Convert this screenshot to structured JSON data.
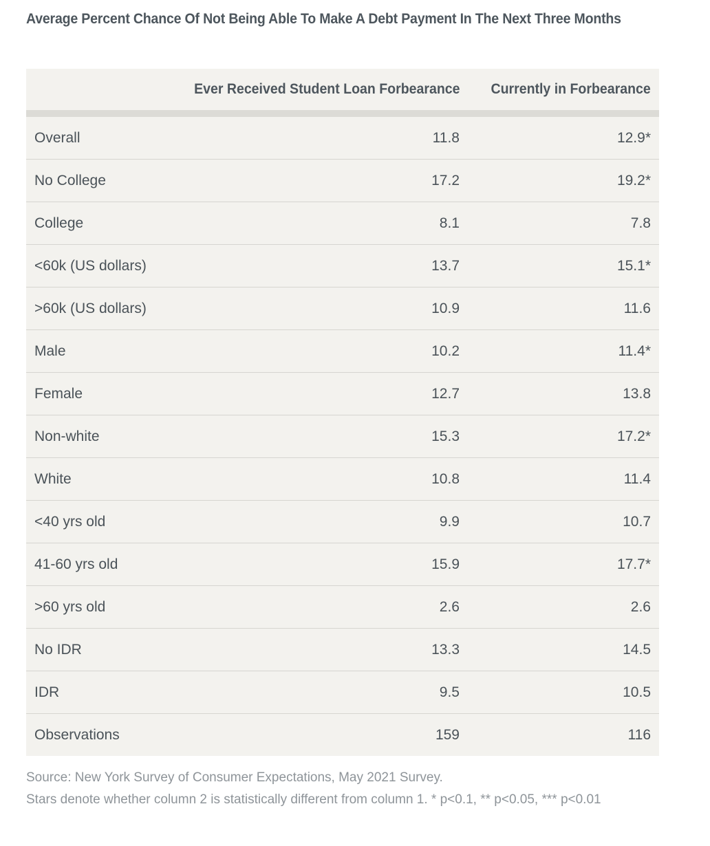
{
  "title": "Average Percent Chance Of Not Being Able To Make A Debt Payment In The Next Three Months",
  "chart_data": {
    "type": "table",
    "title": "Average Percent Chance Of Not Being Able To Make A Debt Payment In The Next Three Months",
    "columns": [
      "",
      "Ever Received Student Loan Forbearance",
      "Currently in Forbearance"
    ],
    "rows": [
      {
        "label": "Overall",
        "ever": "11.8",
        "current": "12.9*"
      },
      {
        "label": "No College",
        "ever": "17.2",
        "current": "19.2*"
      },
      {
        "label": "College",
        "ever": "8.1",
        "current": "7.8"
      },
      {
        "label": "<60k (US dollars)",
        "ever": "13.7",
        "current": "15.1*"
      },
      {
        "label": ">60k (US dollars)",
        "ever": "10.9",
        "current": "11.6"
      },
      {
        "label": "Male",
        "ever": "10.2",
        "current": "11.4*"
      },
      {
        "label": "Female",
        "ever": "12.7",
        "current": "13.8"
      },
      {
        "label": "Non-white",
        "ever": "15.3",
        "current": "17.2*"
      },
      {
        "label": "White",
        "ever": "10.8",
        "current": "11.4"
      },
      {
        "label": "<40 yrs old",
        "ever": "9.9",
        "current": "10.7"
      },
      {
        "label": "41-60 yrs old",
        "ever": "15.9",
        "current": "17.7*"
      },
      {
        "label": ">60 yrs old",
        "ever": "2.6",
        "current": "2.6"
      },
      {
        "label": "No IDR",
        "ever": "13.3",
        "current": "14.5"
      },
      {
        "label": "IDR",
        "ever": "9.5",
        "current": "10.5"
      },
      {
        "label": "Observations",
        "ever": "159",
        "current": "116"
      }
    ]
  },
  "notes": {
    "source": "Source: New York Survey of Consumer Expectations, May 2021 Survey.",
    "stars": "Stars denote whether column 2 is statistically different from column 1. * p<0.1, ** p<0.05, *** p<0.01"
  },
  "colors": {
    "table_background": "#f3f2ee",
    "header_rule": "#dcdbd6",
    "row_rule": "#d6d5d0",
    "text": "#4a5258",
    "note_text": "#8e9499"
  }
}
